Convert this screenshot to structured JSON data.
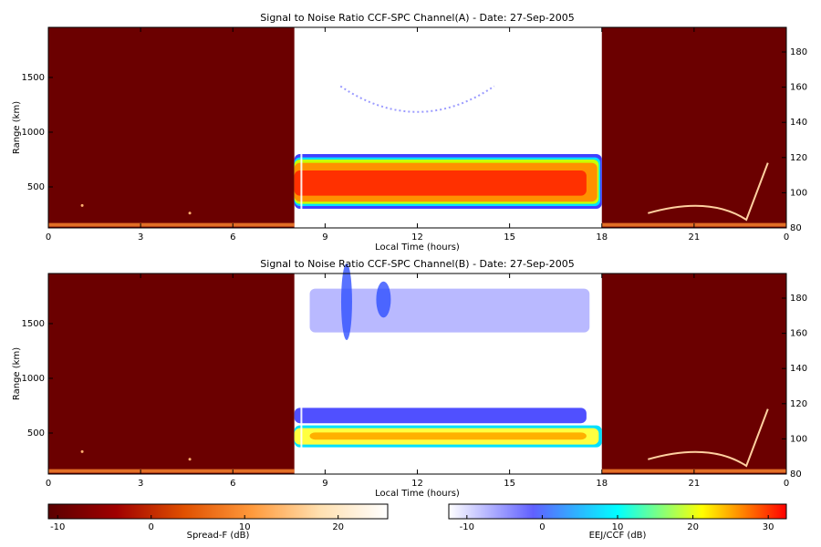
{
  "chart_data": [
    {
      "type": "heatmap",
      "title": "Signal to Noise Ratio CCF-SPC Channel(A) - Date: 27-Sep-2005",
      "xlabel": "Local Time (hours)",
      "ylabel": "Range (km)",
      "xlim": [
        0,
        24
      ],
      "xticks": [
        0,
        3,
        6,
        9,
        12,
        15,
        18,
        21,
        {
          "value": 24,
          "label": "0"
        }
      ],
      "ylim": [
        125,
        1958
      ],
      "yticks": [
        500,
        1000,
        1500
      ],
      "y2lim": [
        80,
        194
      ],
      "y2ticks": [
        80,
        100,
        120,
        140,
        160,
        180
      ]
    },
    {
      "type": "heatmap",
      "title": "Signal to Noise Ratio CCF-SPC Channel(B) - Date: 27-Sep-2005",
      "xlabel": "Local Time (hours)",
      "ylabel": "Range (km)",
      "xlim": [
        0,
        24
      ],
      "xticks": [
        0,
        3,
        6,
        9,
        12,
        15,
        18,
        21,
        {
          "value": 24,
          "label": "0"
        }
      ],
      "ylim": [
        125,
        1958
      ],
      "yticks": [
        500,
        1000,
        1500
      ],
      "y2lim": [
        80,
        194
      ],
      "y2ticks": [
        80,
        100,
        120,
        140,
        160,
        180
      ]
    },
    {
      "type": "colorbar",
      "label": "Spread-F (dB)",
      "xlim": [
        -11,
        25.3
      ],
      "xticks": [
        -10,
        0,
        10,
        20
      ],
      "colors": [
        "#5a0000",
        "#a00000",
        "#e05000",
        "#ff9a3c",
        "#ffe0b0",
        "#ffffff"
      ]
    },
    {
      "type": "colorbar",
      "label": "EEJ/CCF (dB)",
      "xlim": [
        -12.4,
        32.4
      ],
      "xticks": [
        -10,
        0,
        10,
        20,
        30
      ],
      "colors": [
        "#ffffff",
        "#6060ff",
        "#00ffff",
        "#ffff00",
        "#ff0000"
      ]
    }
  ]
}
